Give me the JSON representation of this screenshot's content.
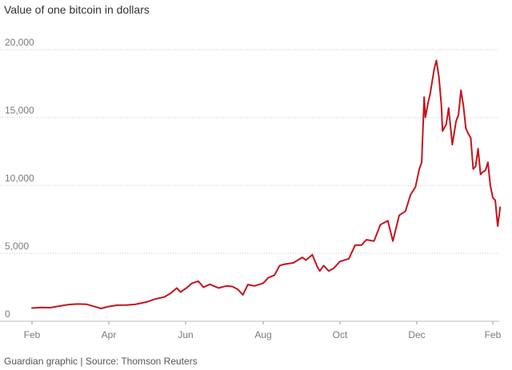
{
  "title": "Value of one bitcoin in dollars",
  "source": "Guardian graphic | Source: Thomson Reuters",
  "colors": {
    "line": "#c4151c",
    "grid": "#c8c8c8",
    "text": "#7a7a7a"
  },
  "chart_data": {
    "type": "line",
    "title": "Value of one bitcoin in dollars",
    "xlabel": "",
    "ylabel": "",
    "x_ticks": [
      "Feb",
      "Apr",
      "Jun",
      "Aug",
      "Oct",
      "Dec",
      "Feb"
    ],
    "y_ticks": [
      0,
      5000,
      10000,
      15000,
      20000
    ],
    "y_tick_labels": [
      "0",
      "5,000",
      "10,000",
      "15,000",
      "20,000"
    ],
    "ylim": [
      0,
      20000
    ],
    "xlim": [
      "2017-02-01",
      "2018-02-06"
    ],
    "grid": true,
    "legend": "none",
    "series": [
      {
        "values": [
          [
            "2017-02-01",
            970
          ],
          [
            "2017-02-08",
            1010
          ],
          [
            "2017-02-15",
            1000
          ],
          [
            "2017-02-22",
            1120
          ],
          [
            "2017-03-01",
            1230
          ],
          [
            "2017-03-08",
            1270
          ],
          [
            "2017-03-15",
            1250
          ],
          [
            "2017-03-22",
            1050
          ],
          [
            "2017-03-26",
            940
          ],
          [
            "2017-04-01",
            1090
          ],
          [
            "2017-04-08",
            1180
          ],
          [
            "2017-04-15",
            1190
          ],
          [
            "2017-04-22",
            1240
          ],
          [
            "2017-05-01",
            1420
          ],
          [
            "2017-05-08",
            1640
          ],
          [
            "2017-05-15",
            1780
          ],
          [
            "2017-05-20",
            2050
          ],
          [
            "2017-05-25",
            2450
          ],
          [
            "2017-05-28",
            2150
          ],
          [
            "2017-06-02",
            2470
          ],
          [
            "2017-06-06",
            2800
          ],
          [
            "2017-06-11",
            2950
          ],
          [
            "2017-06-15",
            2500
          ],
          [
            "2017-06-20",
            2720
          ],
          [
            "2017-06-27",
            2450
          ],
          [
            "2017-07-03",
            2600
          ],
          [
            "2017-07-08",
            2550
          ],
          [
            "2017-07-12",
            2350
          ],
          [
            "2017-07-16",
            1950
          ],
          [
            "2017-07-20",
            2700
          ],
          [
            "2017-07-25",
            2600
          ],
          [
            "2017-08-01",
            2800
          ],
          [
            "2017-08-05",
            3200
          ],
          [
            "2017-08-10",
            3400
          ],
          [
            "2017-08-14",
            4100
          ],
          [
            "2017-08-18",
            4200
          ],
          [
            "2017-08-25",
            4300
          ],
          [
            "2017-09-01",
            4700
          ],
          [
            "2017-09-04",
            4500
          ],
          [
            "2017-09-09",
            4900
          ],
          [
            "2017-09-13",
            4000
          ],
          [
            "2017-09-15",
            3700
          ],
          [
            "2017-09-18",
            4100
          ],
          [
            "2017-09-22",
            3700
          ],
          [
            "2017-09-26",
            3900
          ],
          [
            "2017-10-01",
            4400
          ],
          [
            "2017-10-08",
            4600
          ],
          [
            "2017-10-13",
            5600
          ],
          [
            "2017-10-18",
            5600
          ],
          [
            "2017-10-22",
            6000
          ],
          [
            "2017-10-28",
            5900
          ],
          [
            "2017-11-02",
            7100
          ],
          [
            "2017-11-08",
            7400
          ],
          [
            "2017-11-12",
            5900
          ],
          [
            "2017-11-17",
            7800
          ],
          [
            "2017-11-22",
            8100
          ],
          [
            "2017-11-26",
            9300
          ],
          [
            "2017-11-30",
            9900
          ],
          [
            "2017-12-03",
            11200
          ],
          [
            "2017-12-05",
            11700
          ],
          [
            "2017-12-07",
            16500
          ],
          [
            "2017-12-08",
            15000
          ],
          [
            "2017-12-10",
            16000
          ],
          [
            "2017-12-12",
            16800
          ],
          [
            "2017-12-15",
            18500
          ],
          [
            "2017-12-17",
            19200
          ],
          [
            "2017-12-19",
            18000
          ],
          [
            "2017-12-21",
            16000
          ],
          [
            "2017-12-22",
            14000
          ],
          [
            "2017-12-25",
            14500
          ],
          [
            "2017-12-27",
            15700
          ],
          [
            "2017-12-30",
            13000
          ],
          [
            "2018-01-02",
            14700
          ],
          [
            "2018-01-04",
            15200
          ],
          [
            "2018-01-06",
            17000
          ],
          [
            "2018-01-08",
            15900
          ],
          [
            "2018-01-10",
            14200
          ],
          [
            "2018-01-12",
            13800
          ],
          [
            "2018-01-14",
            13500
          ],
          [
            "2018-01-16",
            11200
          ],
          [
            "2018-01-18",
            11400
          ],
          [
            "2018-01-20",
            12700
          ],
          [
            "2018-01-22",
            10800
          ],
          [
            "2018-01-24",
            11000
          ],
          [
            "2018-01-26",
            11100
          ],
          [
            "2018-01-28",
            11700
          ],
          [
            "2018-01-30",
            10000
          ],
          [
            "2018-02-01",
            9100
          ],
          [
            "2018-02-03",
            8900
          ],
          [
            "2018-02-05",
            7000
          ],
          [
            "2018-02-06",
            7700
          ],
          [
            "2018-02-07",
            8400
          ]
        ]
      }
    ]
  }
}
